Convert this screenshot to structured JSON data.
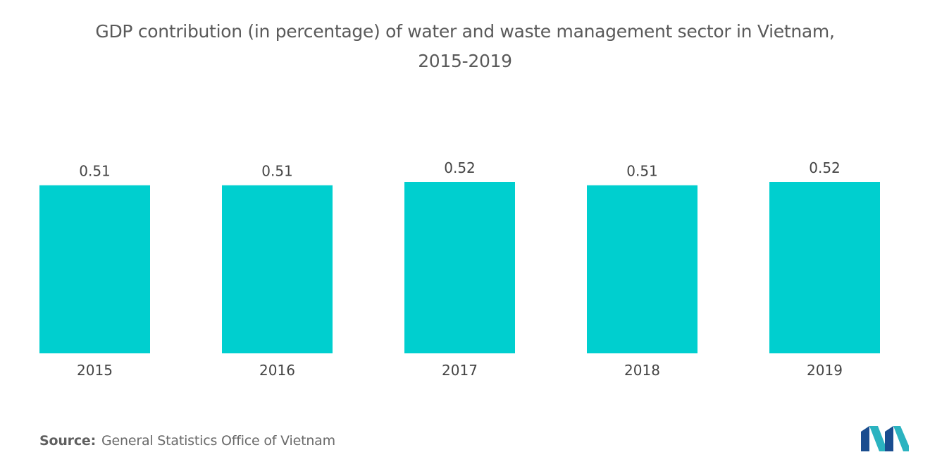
{
  "chart_data": {
    "type": "bar",
    "title_line1": "GDP contribution (in percentage) of water and waste management sector in Vietnam,",
    "title_line2": "2015-2019",
    "categories": [
      "2015",
      "2016",
      "2017",
      "2018",
      "2019"
    ],
    "values": [
      0.51,
      0.51,
      0.52,
      0.51,
      0.52
    ],
    "value_labels": [
      "0.51",
      "0.51",
      "0.52",
      "0.51",
      "0.52"
    ],
    "xlabel": "",
    "ylabel": "",
    "ylim": [
      0,
      0.52
    ],
    "grid": false,
    "bar_color": "#00cfcf"
  },
  "source": {
    "label": "Source:",
    "text": "General Statistics Office of Vietnam"
  },
  "logo": {
    "icon": "mordor-intelligence-logo-icon",
    "colors": [
      "#1a4d8f",
      "#2bb3c0"
    ]
  }
}
